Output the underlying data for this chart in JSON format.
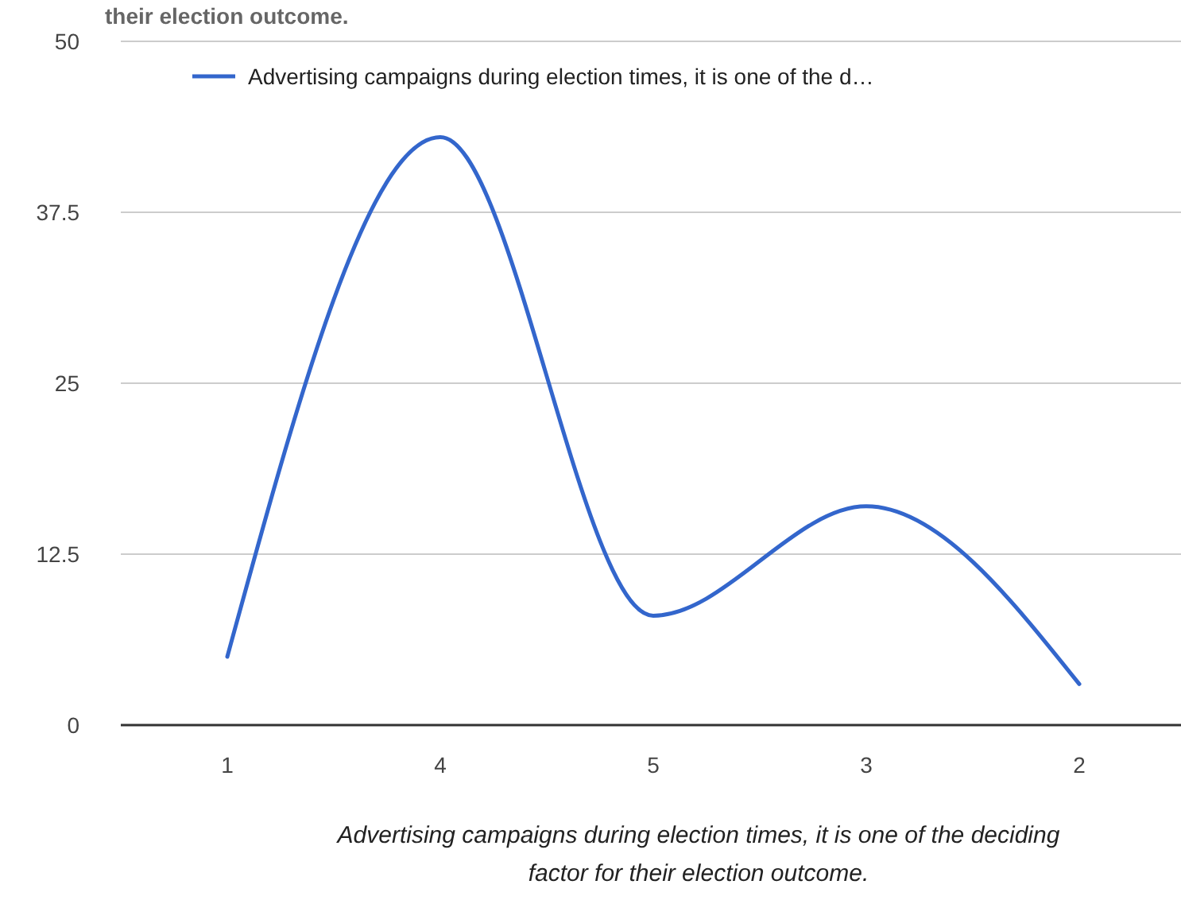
{
  "chart_data": {
    "type": "line",
    "title": "their election outcome.",
    "xlabel": "Advertising campaigns during election times, it is one of the deciding factor for their election outcome.",
    "categories": [
      "1",
      "4",
      "5",
      "3",
      "2"
    ],
    "series": [
      {
        "name": "Advertising campaigns during election times, it is one of the d…",
        "color": "#3366cc",
        "values": [
          5,
          43,
          8,
          16,
          3
        ]
      }
    ],
    "ylim": [
      0,
      50
    ],
    "yticks": [
      0,
      12.5,
      25,
      37.5,
      50
    ],
    "grid": "y",
    "legend": "top",
    "marker": "none",
    "line_style": "solid"
  }
}
